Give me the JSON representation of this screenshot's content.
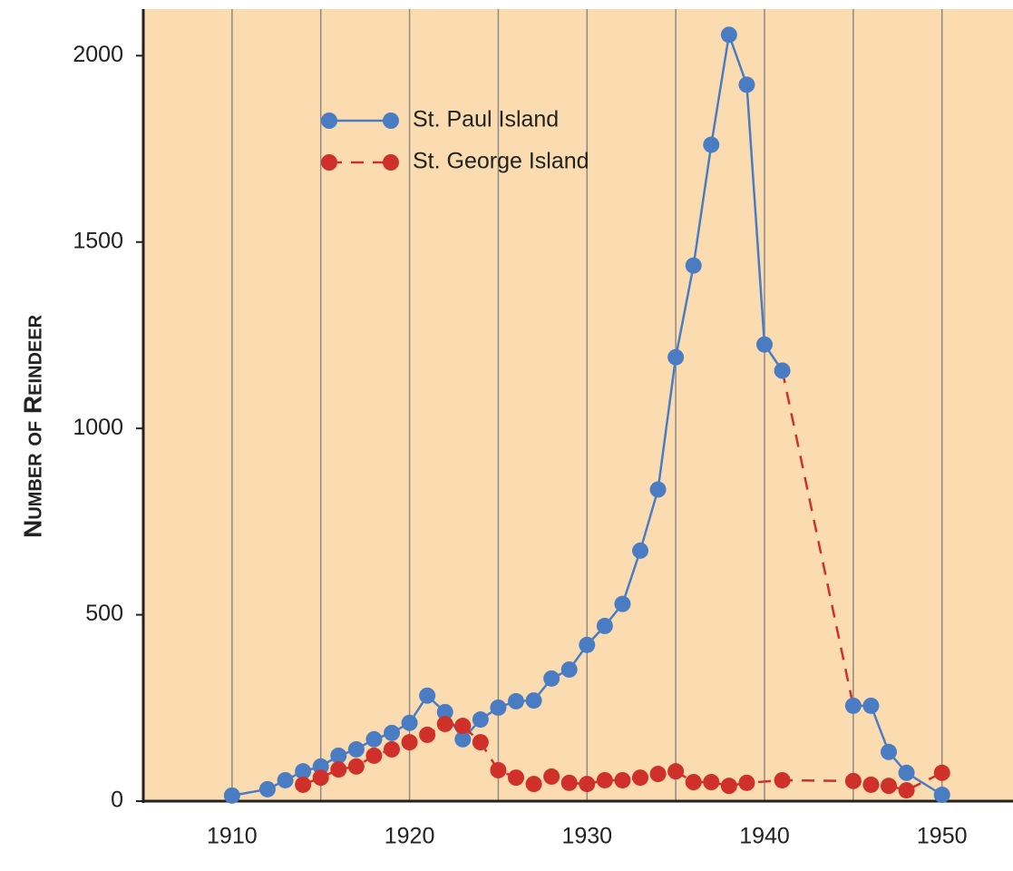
{
  "chart_data": {
    "type": "line",
    "ylabel": "Number of Reindeer",
    "xlim": [
      1905,
      1954
    ],
    "ylim": [
      0,
      2125
    ],
    "xticks": [
      1910,
      1920,
      1930,
      1940,
      1950
    ],
    "xgrid_ticks": [
      1910,
      1915,
      1920,
      1925,
      1930,
      1935,
      1940,
      1945,
      1950
    ],
    "yticks": [
      0,
      500,
      1000,
      1500,
      2000
    ],
    "legend": "upper left",
    "background": "#fbdcb0",
    "series": [
      {
        "name": "St. Paul Island",
        "color": "#4a7cc4",
        "dash": false,
        "x": [
          1910,
          1912,
          1913,
          1914,
          1915,
          1916,
          1917,
          1918,
          1919,
          1920,
          1921,
          1922,
          1923,
          1924,
          1925,
          1926,
          1927,
          1928,
          1929,
          1930,
          1931,
          1932,
          1933,
          1934,
          1935,
          1936,
          1937,
          1938,
          1939,
          1940,
          1941,
          1945,
          1946,
          1947,
          1948,
          1950
        ],
        "values": [
          15,
          32,
          56,
          80,
          93,
          122,
          139,
          166,
          183,
          210,
          283,
          239,
          166,
          219,
          251,
          268,
          270,
          329,
          353,
          419,
          470,
          529,
          672,
          836,
          1191,
          1437,
          1761,
          2056,
          1922,
          1225,
          1155,
          256,
          256,
          132,
          76,
          17
        ]
      },
      {
        "name": "St. George Island",
        "color": "#d0302a",
        "dash": true,
        "x": [
          1914,
          1915,
          1916,
          1917,
          1918,
          1919,
          1920,
          1921,
          1922,
          1923,
          1924,
          1925,
          1926,
          1927,
          1928,
          1929,
          1930,
          1931,
          1932,
          1933,
          1934,
          1935,
          1936,
          1937,
          1938,
          1939,
          1941,
          1945,
          1946,
          1947,
          1948,
          1950
        ],
        "values": [
          44,
          63,
          85,
          93,
          122,
          139,
          158,
          178,
          207,
          202,
          158,
          83,
          63,
          46,
          66,
          49,
          46,
          56,
          56,
          63,
          73,
          80,
          51,
          51,
          41,
          49,
          56,
          54,
          44,
          41,
          29,
          76
        ]
      }
    ]
  }
}
